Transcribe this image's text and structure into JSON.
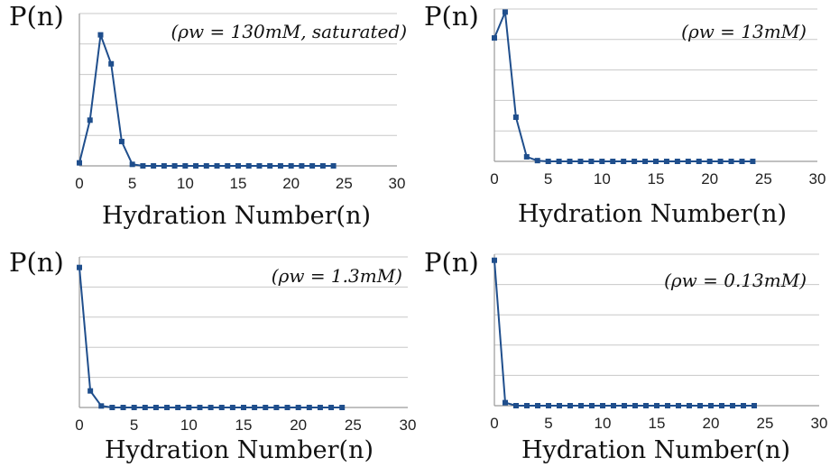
{
  "chart_data": [
    {
      "type": "line",
      "ylabel": "P(n)",
      "xlabel": "Hydration Number(n)",
      "annotation": "(ρw = 130mM, saturated)",
      "x_ticks": [
        "0",
        "5",
        "10",
        "15",
        "20",
        "25",
        "30"
      ],
      "xlim": [
        0,
        30
      ],
      "ylim": [
        0,
        1
      ],
      "y_gridlines": 5,
      "y_tick_labels_shown": false,
      "grid": true,
      "color": "#1f4e8c",
      "x": [
        0,
        1,
        2,
        3,
        4,
        5,
        6,
        7,
        8,
        9,
        10,
        11,
        12,
        13,
        14,
        15,
        16,
        17,
        18,
        19,
        20,
        21,
        22,
        23,
        24
      ],
      "series": [
        {
          "values": [
            0.02,
            0.3,
            0.86,
            0.67,
            0.16,
            0.01,
            0,
            0,
            0,
            0,
            0,
            0,
            0,
            0,
            0,
            0,
            0,
            0,
            0,
            0,
            0,
            0,
            0,
            0,
            0
          ]
        }
      ]
    },
    {
      "type": "line",
      "ylabel": "P(n)",
      "xlabel": "Hydration Number(n)",
      "annotation": "(ρw = 13mM)",
      "x_ticks": [
        "0",
        "5",
        "10",
        "15",
        "20",
        "25",
        "30"
      ],
      "xlim": [
        0,
        30
      ],
      "ylim": [
        0,
        1
      ],
      "y_gridlines": 5,
      "y_tick_labels_shown": false,
      "grid": true,
      "color": "#1f4e8c",
      "x": [
        0,
        1,
        2,
        3,
        4,
        5,
        6,
        7,
        8,
        9,
        10,
        11,
        12,
        13,
        14,
        15,
        16,
        17,
        18,
        19,
        20,
        21,
        22,
        23,
        24
      ],
      "series": [
        {
          "values": [
            0.81,
            0.98,
            0.29,
            0.03,
            0.005,
            0,
            0,
            0,
            0,
            0,
            0,
            0,
            0,
            0,
            0,
            0,
            0,
            0,
            0,
            0,
            0,
            0,
            0,
            0,
            0
          ]
        }
      ]
    },
    {
      "type": "line",
      "ylabel": "P(n)",
      "xlabel": "Hydration Number(n)",
      "annotation": "(ρw = 1.3mM)",
      "x_ticks": [
        "0",
        "5",
        "10",
        "15",
        "20",
        "25",
        "30"
      ],
      "xlim": [
        0,
        30
      ],
      "ylim": [
        0,
        1
      ],
      "y_gridlines": 5,
      "y_tick_labels_shown": false,
      "grid": true,
      "color": "#1f4e8c",
      "x": [
        0,
        1,
        2,
        3,
        4,
        5,
        6,
        7,
        8,
        9,
        10,
        11,
        12,
        13,
        14,
        15,
        16,
        17,
        18,
        19,
        20,
        21,
        22,
        23,
        24
      ],
      "series": [
        {
          "values": [
            0.93,
            0.11,
            0.01,
            0,
            0,
            0,
            0,
            0,
            0,
            0,
            0,
            0,
            0,
            0,
            0,
            0,
            0,
            0,
            0,
            0,
            0,
            0,
            0,
            0,
            0
          ]
        }
      ]
    },
    {
      "type": "line",
      "ylabel": "P(n)",
      "xlabel": "Hydration Number(n)",
      "annotation": "(ρw = 0.13mM)",
      "x_ticks": [
        "0",
        "5",
        "10",
        "15",
        "20",
        "25",
        "30"
      ],
      "xlim": [
        0,
        30
      ],
      "ylim": [
        0,
        1
      ],
      "y_gridlines": 5,
      "y_tick_labels_shown": false,
      "grid": true,
      "color": "#1f4e8c",
      "x": [
        0,
        1,
        2,
        3,
        4,
        5,
        6,
        7,
        8,
        9,
        10,
        11,
        12,
        13,
        14,
        15,
        16,
        17,
        18,
        19,
        20,
        21,
        22,
        23,
        24
      ],
      "series": [
        {
          "values": [
            0.96,
            0.02,
            0,
            0,
            0,
            0,
            0,
            0,
            0,
            0,
            0,
            0,
            0,
            0,
            0,
            0,
            0,
            0,
            0,
            0,
            0,
            0,
            0,
            0,
            0
          ]
        }
      ]
    }
  ]
}
